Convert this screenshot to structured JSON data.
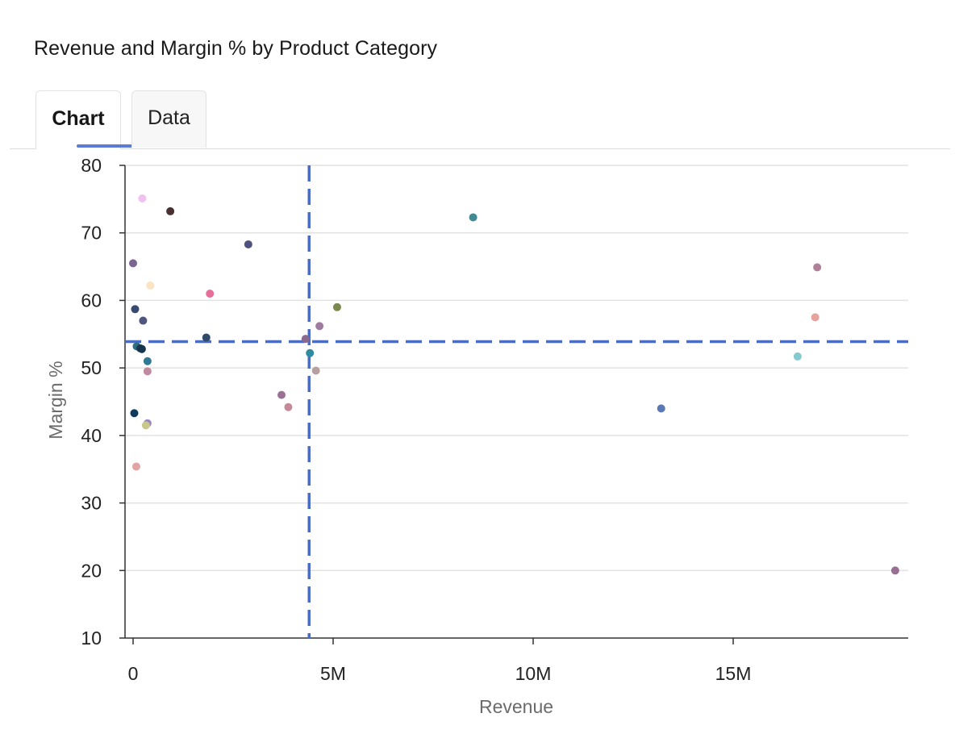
{
  "title": "Revenue and Margin % by Product Category",
  "tabs": [
    {
      "label": "Chart",
      "active": true
    },
    {
      "label": "Data",
      "active": false
    }
  ],
  "chart_data": {
    "type": "scatter",
    "xlabel": "Revenue",
    "ylabel": "Margin %",
    "xlim": [
      -200000,
      19300000
    ],
    "ylim": [
      10,
      80
    ],
    "xticks": [
      {
        "value": 0,
        "label": "0"
      },
      {
        "value": 5000000,
        "label": "5M"
      },
      {
        "value": 10000000,
        "label": "10M"
      },
      {
        "value": 15000000,
        "label": "15M"
      }
    ],
    "yticks": [
      10,
      20,
      30,
      40,
      50,
      60,
      70,
      80
    ],
    "grid": "horizontal",
    "reference_lines": {
      "x": 4400000,
      "y": 53.9,
      "color": "#4a6cc4",
      "style": "dashed"
    },
    "points": [
      {
        "x": 230000,
        "y": 75.1,
        "color": "#f0c2f0"
      },
      {
        "x": 930000,
        "y": 73.2,
        "color": "#4a3030"
      },
      {
        "x": 8500000,
        "y": 72.3,
        "color": "#3f8a94"
      },
      {
        "x": 2880000,
        "y": 68.3,
        "color": "#4f527e"
      },
      {
        "x": 0,
        "y": 65.5,
        "color": "#7a6690"
      },
      {
        "x": 17100000,
        "y": 64.9,
        "color": "#b08099"
      },
      {
        "x": 430000,
        "y": 62.2,
        "color": "#fbe3c4"
      },
      {
        "x": 1920000,
        "y": 61.0,
        "color": "#e66e98"
      },
      {
        "x": 5100000,
        "y": 59.0,
        "color": "#7a8a4f"
      },
      {
        "x": 50000,
        "y": 58.7,
        "color": "#394a72"
      },
      {
        "x": 17050000,
        "y": 57.5,
        "color": "#e8a29c"
      },
      {
        "x": 250000,
        "y": 57.0,
        "color": "#4f5680"
      },
      {
        "x": 4660000,
        "y": 56.2,
        "color": "#a07ba0"
      },
      {
        "x": 1830000,
        "y": 54.5,
        "color": "#2e4a68"
      },
      {
        "x": 4310000,
        "y": 54.3,
        "color": "#8a6b8e"
      },
      {
        "x": 90000,
        "y": 53.2,
        "color": "#2f6f82"
      },
      {
        "x": 180000,
        "y": 52.9,
        "color": "#1f3a4f"
      },
      {
        "x": 220000,
        "y": 52.8,
        "color": "#17344e"
      },
      {
        "x": 4420000,
        "y": 52.2,
        "color": "#2f8ba0"
      },
      {
        "x": 16610000,
        "y": 51.7,
        "color": "#84c8d0"
      },
      {
        "x": 360000,
        "y": 51.0,
        "color": "#2f7896"
      },
      {
        "x": 4570000,
        "y": 49.6,
        "color": "#b8a0a0"
      },
      {
        "x": 360000,
        "y": 49.5,
        "color": "#c08aa0"
      },
      {
        "x": 3710000,
        "y": 46.0,
        "color": "#9a7094"
      },
      {
        "x": 3880000,
        "y": 44.2,
        "color": "#c48a9a"
      },
      {
        "x": 13200000,
        "y": 44.0,
        "color": "#5a78b8"
      },
      {
        "x": 30000,
        "y": 43.3,
        "color": "#0f3a5a"
      },
      {
        "x": 360000,
        "y": 41.8,
        "color": "#9a84c4"
      },
      {
        "x": 320000,
        "y": 41.5,
        "color": "#c8c88a"
      },
      {
        "x": 80000,
        "y": 35.4,
        "color": "#e0a4a4"
      },
      {
        "x": 19050000,
        "y": 20.0,
        "color": "#9a6e94"
      }
    ]
  }
}
